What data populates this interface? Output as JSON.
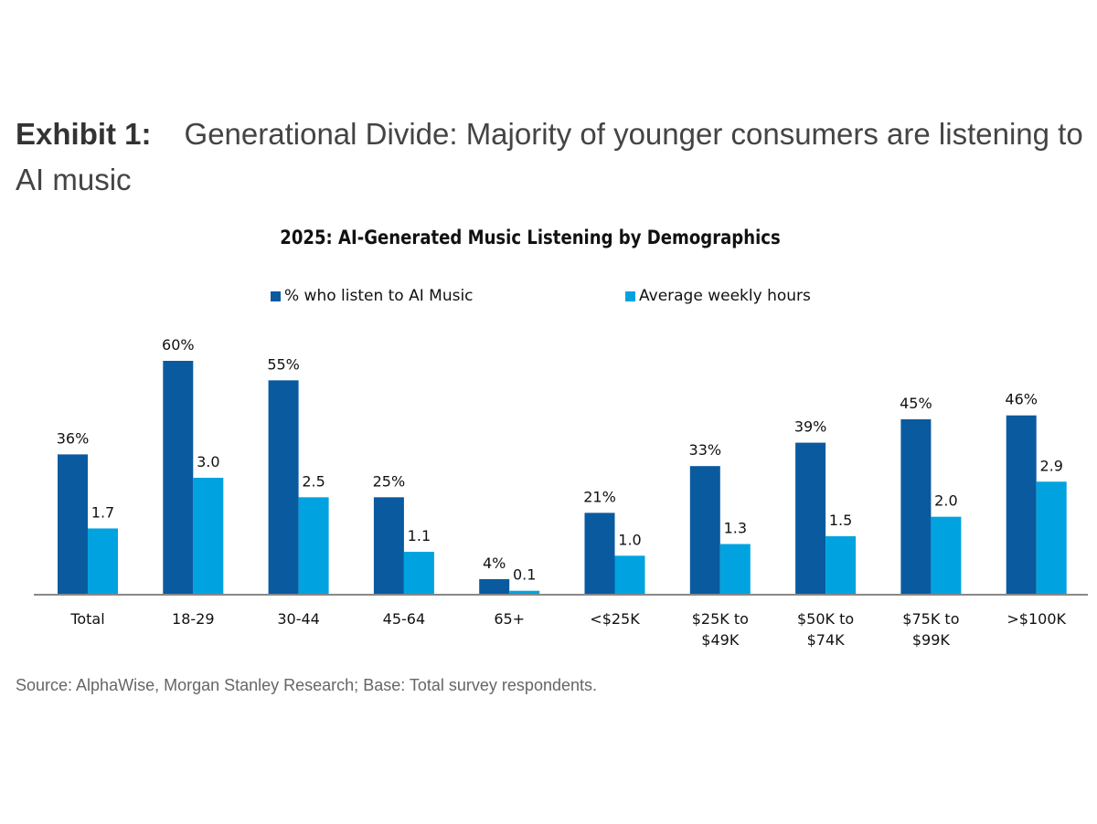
{
  "exhibit": {
    "label": "Exhibit 1:",
    "title": "Generational Divide: Majority of younger consumers are listening to AI music"
  },
  "chart_data": {
    "type": "bar",
    "title": "2025: AI-Generated Music Listening by Demographics",
    "categories": [
      "Total",
      "18-29",
      "30-44",
      "45-64",
      "65+",
      "<$25K",
      "$25K to $49K",
      "$50K to $74K",
      "$75K to $99K",
      ">$100K"
    ],
    "category_lines": [
      [
        "Total"
      ],
      [
        "18-29"
      ],
      [
        "30-44"
      ],
      [
        "45-64"
      ],
      [
        "65+"
      ],
      [
        "<$25K"
      ],
      [
        "$25K to",
        "$49K"
      ],
      [
        "$50K to",
        "$74K"
      ],
      [
        "$75K to",
        "$99K"
      ],
      [
        ">$100K"
      ]
    ],
    "series": [
      {
        "name": "% who listen to AI Music",
        "values": [
          36,
          60,
          55,
          25,
          4,
          21,
          33,
          39,
          45,
          46
        ],
        "labels": [
          "36%",
          "60%",
          "55%",
          "25%",
          "4%",
          "21%",
          "33%",
          "39%",
          "45%",
          "46%"
        ],
        "color": "#0a5aa0"
      },
      {
        "name": "Average weekly hours",
        "values": [
          1.7,
          3.0,
          2.5,
          1.1,
          0.1,
          1.0,
          1.3,
          1.5,
          2.0,
          2.9
        ],
        "labels": [
          "1.7",
          "3.0",
          "2.5",
          "1.1",
          "0.1",
          "1.0",
          "1.3",
          "1.5",
          "2.0",
          "2.9"
        ],
        "color": "#00a3e0"
      }
    ],
    "legend_position": "top",
    "grid": false
  },
  "source": "Source: AlphaWise, Morgan Stanley Research; Base: Total survey respondents."
}
